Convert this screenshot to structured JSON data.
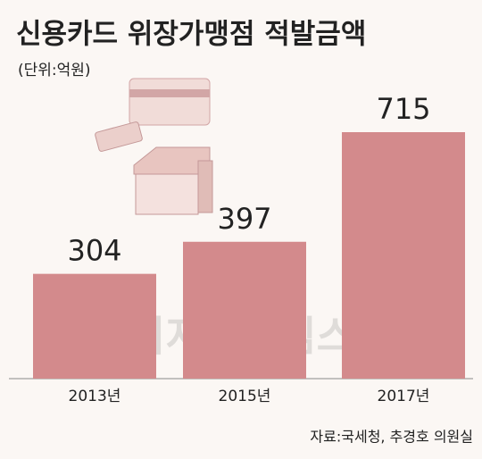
{
  "chart_data": {
    "type": "bar",
    "title": "신용카드 위장가맹점 적발금액",
    "subtitle": "(단위:억원)",
    "categories": [
      "2013년",
      "2015년",
      "2017년"
    ],
    "values": [
      304,
      397,
      715
    ],
    "color": "#d38a8c",
    "source": "자료:국세청, 추경호 의원실",
    "watermark": "디지털타임스"
  }
}
